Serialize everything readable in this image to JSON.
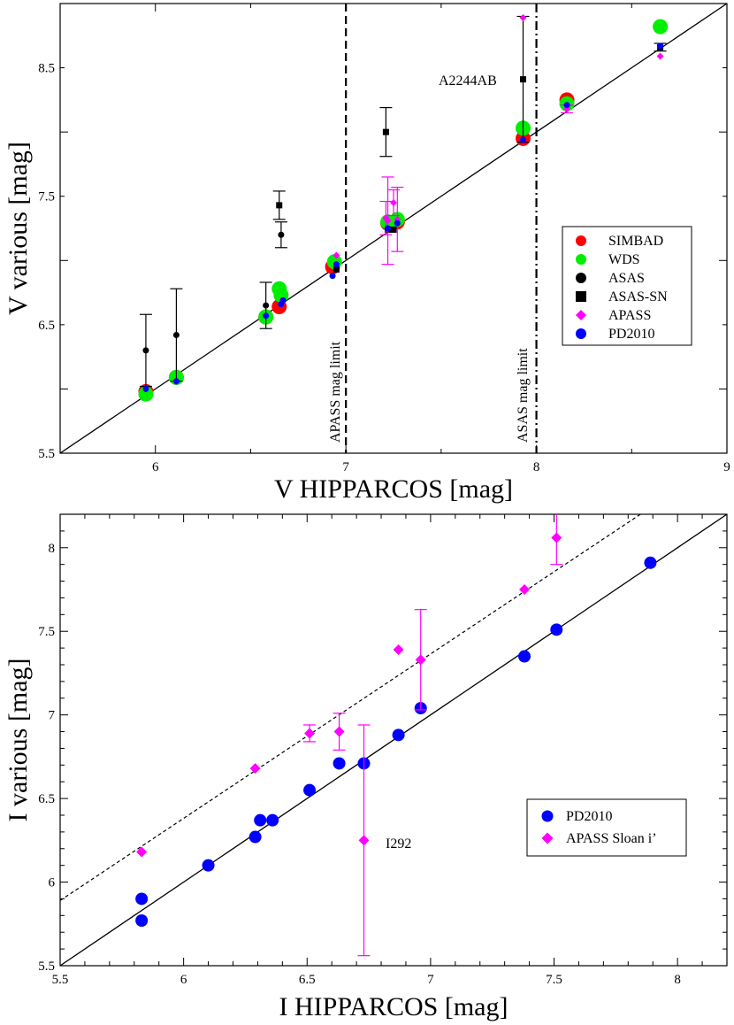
{
  "chart_data": [
    {
      "type": "scatter",
      "xlabel": "V HIPPARCOS [mag]",
      "ylabel": "V various [mag]",
      "xlim": [
        5.5,
        9.0
      ],
      "ylim": [
        5.5,
        9.0
      ],
      "x_ticks": [
        "6",
        "7",
        "8",
        "9"
      ],
      "y_ticks": [
        "5.5",
        "6.5",
        "7.5",
        "8.5"
      ],
      "legend_position": "center-right",
      "vertical_lines": [
        {
          "x": 7.0,
          "style": "dashed",
          "label": "APASS mag limit"
        },
        {
          "x": 8.0,
          "style": "dash-dot",
          "label": "ASAS mag limit"
        }
      ],
      "reference_line": {
        "type": "one-to-one",
        "from": [
          5.5,
          5.5
        ],
        "to": [
          9.0,
          9.0
        ]
      },
      "annotations": [
        {
          "text": "A2244AB",
          "x": 7.93,
          "y": 8.39
        }
      ],
      "series": [
        {
          "name": "SIMBAD",
          "color": "#ff0000",
          "marker": "circle",
          "size": 8.5,
          "points": [
            [
              5.95,
              5.98
            ],
            [
              6.11,
              6.09
            ],
            [
              6.58,
              6.56
            ],
            [
              6.65,
              6.64
            ],
            [
              6.93,
              6.95
            ],
            [
              7.22,
              7.29
            ],
            [
              7.27,
              7.3
            ],
            [
              7.93,
              7.95
            ],
            [
              8.16,
              8.25
            ]
          ]
        },
        {
          "name": "WDS",
          "color": "#00ee00",
          "marker": "circle",
          "size": 8.5,
          "points": [
            [
              5.95,
              5.96
            ],
            [
              6.11,
              6.09
            ],
            [
              6.58,
              6.56
            ],
            [
              6.65,
              6.78
            ],
            [
              6.66,
              6.73
            ],
            [
              6.94,
              6.99
            ],
            [
              7.22,
              7.3
            ],
            [
              7.27,
              7.32
            ],
            [
              7.93,
              8.03
            ],
            [
              8.16,
              8.22
            ],
            [
              8.65,
              8.82
            ]
          ]
        },
        {
          "name": "ASAS",
          "color": "#000000",
          "marker": "circle",
          "size": 3.5,
          "points": [
            [
              5.95,
              6.3,
              0.28
            ],
            [
              6.11,
              6.42,
              0.36
            ],
            [
              6.58,
              6.65,
              0.18
            ],
            [
              6.66,
              7.2,
              0.1
            ]
          ]
        },
        {
          "name": "ASAS-SN",
          "color": "#000000",
          "marker": "square",
          "size": 3.5,
          "points": [
            [
              6.65,
              7.43,
              0.11
            ],
            [
              6.95,
              6.93,
              0
            ],
            [
              7.21,
              8.0,
              0.19
            ],
            [
              7.22,
              7.24,
              0
            ],
            [
              7.25,
              7.24,
              0
            ],
            [
              7.93,
              8.41,
              0.49
            ],
            [
              8.65,
              8.66,
              0.03
            ]
          ]
        },
        {
          "name": "APASS",
          "color": "#ff00ff",
          "marker": "diamond",
          "size": 4,
          "points": [
            [
              6.95,
              7.04,
              0
            ],
            [
              7.21,
              7.33,
              0.13
            ],
            [
              7.22,
              7.31,
              0.34
            ],
            [
              7.25,
              7.45,
              0.1
            ],
            [
              7.27,
              7.32,
              0.25
            ],
            [
              7.93,
              8.89,
              0
            ],
            [
              8.16,
              8.18,
              0.03
            ],
            [
              8.65,
              8.59,
              0
            ]
          ]
        },
        {
          "name": "PD2010",
          "color": "#0000ff",
          "marker": "circle",
          "size": 3.5,
          "points": [
            [
              5.95,
              6.0
            ],
            [
              6.11,
              6.06
            ],
            [
              6.58,
              6.57
            ],
            [
              6.66,
              6.66
            ],
            [
              6.67,
              6.69
            ],
            [
              6.93,
              6.88
            ],
            [
              6.95,
              6.97
            ],
            [
              7.22,
              7.25
            ],
            [
              7.27,
              7.29
            ],
            [
              7.93,
              7.94
            ],
            [
              8.16,
              8.21
            ],
            [
              8.65,
              8.67
            ]
          ]
        }
      ]
    },
    {
      "type": "scatter",
      "xlabel": "I HIPPARCOS [mag]",
      "ylabel": "I various [mag]",
      "xlim": [
        5.5,
        8.2
      ],
      "ylim": [
        5.5,
        8.2
      ],
      "x_ticks": [
        "5.5",
        "6",
        "6.5",
        "7",
        "7.5",
        "8"
      ],
      "y_ticks": [
        "5.5",
        "6",
        "6.5",
        "7",
        "7.5",
        "8"
      ],
      "legend_position": "bottom-right",
      "reference_line": {
        "type": "one-to-one",
        "from": [
          5.5,
          5.5
        ],
        "to": [
          8.2,
          8.2
        ]
      },
      "offset_line": {
        "style": "dashed",
        "from": [
          5.5,
          5.89
        ],
        "to": [
          7.85,
          8.2
        ]
      },
      "annotations": [
        {
          "text": "I292",
          "x": 6.73,
          "y": 6.25
        }
      ],
      "series": [
        {
          "name": "PD2010",
          "color": "#0000ff",
          "marker": "circle",
          "size": 7,
          "points": [
            [
              5.83,
              5.9
            ],
            [
              5.83,
              5.77
            ],
            [
              6.1,
              6.1
            ],
            [
              6.29,
              6.27
            ],
            [
              6.31,
              6.37
            ],
            [
              6.36,
              6.37
            ],
            [
              6.51,
              6.55
            ],
            [
              6.63,
              6.71
            ],
            [
              6.73,
              6.71
            ],
            [
              6.87,
              6.88
            ],
            [
              6.96,
              7.04
            ],
            [
              7.38,
              7.35
            ],
            [
              7.51,
              7.51
            ],
            [
              7.89,
              7.91
            ]
          ]
        },
        {
          "name": "APASS Sloan i’",
          "color": "#ff00ff",
          "marker": "diamond",
          "size": 6,
          "points": [
            [
              5.83,
              6.18,
              0
            ],
            [
              6.29,
              6.68,
              0
            ],
            [
              6.51,
              6.89,
              0.05
            ],
            [
              6.63,
              6.9,
              0.11
            ],
            [
              6.73,
              6.25,
              0.69
            ],
            [
              6.87,
              7.39,
              0
            ],
            [
              6.96,
              7.33,
              0.3
            ],
            [
              7.38,
              7.75,
              0
            ],
            [
              7.51,
              8.06,
              0.16
            ]
          ]
        }
      ]
    }
  ]
}
